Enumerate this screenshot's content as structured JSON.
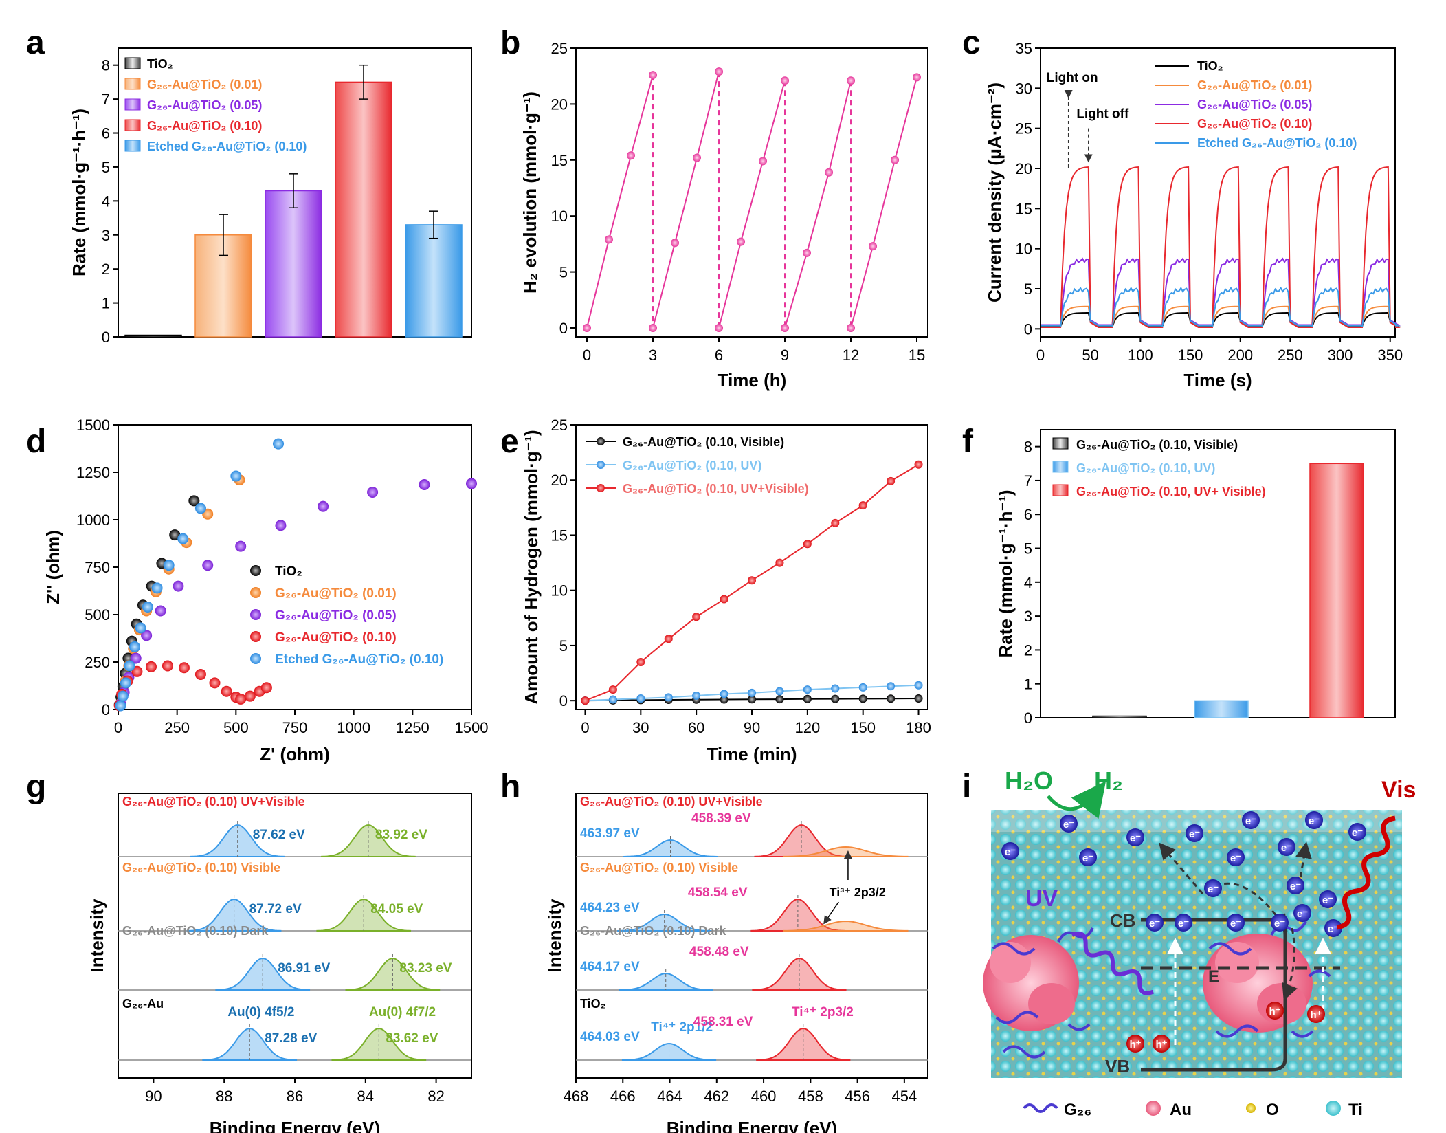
{
  "panels": [
    {
      "letter": "a"
    },
    {
      "letter": "b"
    },
    {
      "letter": "c"
    },
    {
      "letter": "d"
    },
    {
      "letter": "e"
    },
    {
      "letter": "f"
    },
    {
      "letter": "g"
    },
    {
      "letter": "h"
    },
    {
      "letter": "i"
    }
  ],
  "colors": {
    "black": "#000000",
    "orange": "#f58a3c",
    "purple": "#8b2be2",
    "red": "#e8282e",
    "blue": "#3a9ae8",
    "pink": "#e6359a",
    "green": "#7ab02a",
    "gray": "#8a8a8a",
    "lightblue": "#7fc4f2",
    "lightred": "#f06a6a"
  },
  "chart_data": [
    {
      "panel": "a",
      "type": "bar",
      "categories": [
        "TiO2",
        "G26-Au@TiO2 (0.01)",
        "G26-Au@TiO2 (0.05)",
        "G26-Au@TiO2 (0.10)",
        "Etched G26-Au@TiO2 (0.10)"
      ],
      "values": [
        0.05,
        3.0,
        4.3,
        7.5,
        3.3
      ],
      "errors": [
        0.0,
        0.6,
        0.5,
        0.5,
        0.4
      ],
      "ylabel": "Rate (mmol·g⁻¹·h⁻¹)",
      "ylim": [
        0,
        8.5
      ],
      "yticks": [
        "0",
        "1",
        "2",
        "3",
        "4",
        "5",
        "6",
        "7",
        "8"
      ],
      "legend": [
        "TiO₂",
        "G₂₆-Au@TiO₂ (0.01)",
        "G₂₆-Au@TiO₂ (0.05)",
        "G₂₆-Au@TiO₂ (0.10)",
        "Etched G₂₆-Au@TiO₂ (0.10)"
      ],
      "legend_position": "top-left"
    },
    {
      "panel": "b",
      "type": "line",
      "series": [
        {
          "x": [
            0,
            1,
            2,
            3
          ],
          "y": [
            0,
            7.9,
            15.4,
            22.6
          ]
        },
        {
          "x": [
            3,
            4,
            5,
            6
          ],
          "y": [
            0,
            7.6,
            15.2,
            22.9
          ]
        },
        {
          "x": [
            6,
            7,
            8,
            9
          ],
          "y": [
            0,
            7.7,
            14.9,
            22.1
          ]
        },
        {
          "x": [
            9,
            10,
            11,
            12
          ],
          "y": [
            0,
            6.7,
            13.9,
            22.1
          ]
        },
        {
          "x": [
            12,
            13,
            14,
            15
          ],
          "y": [
            0,
            7.3,
            15.0,
            22.4
          ]
        }
      ],
      "xlabel": "Time (h)",
      "ylabel": "H₂ evolution (mmol·g⁻¹)",
      "xlim": [
        -0.5,
        15.5
      ],
      "ylim": [
        -0.8,
        25
      ],
      "xticks": [
        "0",
        "3",
        "6",
        "9",
        "12",
        "15"
      ],
      "yticks": [
        "0",
        "5",
        "10",
        "15",
        "20",
        "25"
      ]
    },
    {
      "panel": "c",
      "type": "line",
      "series": [
        {
          "name": "TiO₂",
          "off": 0.3,
          "on": 2.0
        },
        {
          "name": "G₂₆-Au@TiO₂ (0.01)",
          "off": 0.4,
          "on": 2.8
        },
        {
          "name": "G₂₆-Au@TiO₂ (0.05)",
          "off": 0.5,
          "on": 8.6
        },
        {
          "name": "G₂₆-Au@TiO₂ (0.10)",
          "off": 0.2,
          "on": 20.2
        },
        {
          "name": "Etched G₂₆-Au@TiO₂ (0.10)",
          "off": 0.4,
          "on": 4.9
        }
      ],
      "light_cycles": [
        [
          20,
          48
        ],
        [
          72,
          98
        ],
        [
          122,
          148
        ],
        [
          172,
          198
        ],
        [
          222,
          248
        ],
        [
          272,
          298
        ],
        [
          322,
          348
        ]
      ],
      "xlabel": "Time (s)",
      "ylabel": "Current density (μA·cm⁻²)",
      "xlim": [
        0,
        355
      ],
      "ylim": [
        -1,
        35
      ],
      "xticks": [
        "0",
        "50",
        "100",
        "150",
        "200",
        "250",
        "300",
        "350"
      ],
      "yticks": [
        "0",
        "5",
        "10",
        "15",
        "20",
        "25",
        "30",
        "35"
      ],
      "annotations": [
        "Light on",
        "Light off"
      ],
      "legend_position": "top-right"
    },
    {
      "panel": "d",
      "type": "scatter",
      "series": [
        {
          "name": "TiO₂",
          "x": [
            5,
            12,
            20,
            30,
            42,
            58,
            78,
            105,
            142,
            185,
            240,
            322
          ],
          "y": [
            25,
            65,
            120,
            190,
            270,
            360,
            450,
            550,
            650,
            770,
            920,
            1100
          ]
        },
        {
          "name": "G₂₆-Au@TiO₂ (0.01)",
          "x": [
            8,
            18,
            30,
            45,
            65,
            90,
            120,
            160,
            215,
            290,
            380,
            515
          ],
          "y": [
            30,
            80,
            150,
            230,
            320,
            420,
            520,
            620,
            740,
            880,
            1030,
            1210
          ]
        },
        {
          "name": "G₂₆-Au@TiO₂ (0.05)",
          "x": [
            10,
            25,
            45,
            75,
            120,
            180,
            255,
            380,
            520,
            690,
            870,
            1080,
            1300,
            1500
          ],
          "y": [
            30,
            90,
            170,
            270,
            390,
            520,
            650,
            760,
            860,
            970,
            1070,
            1145,
            1185,
            1190
          ]
        },
        {
          "name": "G₂₆-Au@TiO₂ (0.10)",
          "x": [
            5,
            15,
            40,
            80,
            140,
            210,
            280,
            350,
            410,
            460,
            500,
            520,
            560,
            600,
            630
          ],
          "y": [
            20,
            80,
            150,
            200,
            225,
            230,
            220,
            185,
            140,
            95,
            65,
            55,
            70,
            95,
            115
          ]
        },
        {
          "name": "Etched G₂₆-Au@TiO₂ (0.10)",
          "x": [
            10,
            20,
            32,
            48,
            70,
            95,
            125,
            165,
            215,
            275,
            350,
            500,
            680
          ],
          "y": [
            20,
            70,
            140,
            230,
            330,
            430,
            540,
            640,
            760,
            900,
            1060,
            1230,
            1400
          ]
        }
      ],
      "xlabel": "Z' (ohm)",
      "ylabel": "Z'' (ohm)",
      "xlim": [
        0,
        1500
      ],
      "ylim": [
        0,
        1500
      ],
      "xticks": [
        "0",
        "250",
        "500",
        "750",
        "1000",
        "1250",
        "1500"
      ],
      "yticks": [
        "0",
        "250",
        "500",
        "750",
        "1000",
        "1250",
        "1500"
      ],
      "legend_position": "center-right"
    },
    {
      "panel": "e",
      "type": "line",
      "x": [
        0,
        15,
        30,
        45,
        60,
        75,
        90,
        105,
        120,
        135,
        150,
        165,
        180
      ],
      "series": [
        {
          "name": "G₂₆-Au@TiO₂ (0.10, Visible)",
          "values": [
            0,
            0.02,
            0.05,
            0.07,
            0.09,
            0.1,
            0.12,
            0.13,
            0.15,
            0.16,
            0.17,
            0.18,
            0.2
          ]
        },
        {
          "name": "G₂₆-Au@TiO₂ (0.10, UV)",
          "values": [
            0,
            0.1,
            0.2,
            0.3,
            0.45,
            0.6,
            0.7,
            0.85,
            1.0,
            1.1,
            1.2,
            1.3,
            1.4
          ]
        },
        {
          "name": "G₂₆-Au@TiO₂ (0.10, UV+Visible)",
          "values": [
            0,
            1.0,
            3.5,
            5.6,
            7.6,
            9.2,
            10.9,
            12.5,
            14.2,
            16.1,
            17.7,
            19.9,
            21.4
          ]
        }
      ],
      "xlabel": "Time (min)",
      "ylabel": "Amount of Hydrogen (mmol·g⁻¹)",
      "xlim": [
        -5,
        185
      ],
      "ylim": [
        -0.8,
        25
      ],
      "xticks": [
        "0",
        "30",
        "60",
        "90",
        "120",
        "150",
        "180"
      ],
      "yticks": [
        "0",
        "5",
        "10",
        "15",
        "20",
        "25"
      ],
      "legend_position": "top-left"
    },
    {
      "panel": "f",
      "type": "bar",
      "categories": [
        "G₂₆-Au@TiO₂ (0.10, Visible)",
        "G₂₆-Au@TiO₂ (0.10, UV)",
        "G₂₆-Au@TiO₂ (0.10, UV+ Visible)"
      ],
      "values": [
        0.05,
        0.5,
        7.5
      ],
      "ylabel": "Rate (mmol·g⁻¹·h⁻¹)",
      "ylim": [
        0,
        8.5
      ],
      "yticks": [
        "0",
        "1",
        "2",
        "3",
        "4",
        "5",
        "6",
        "7",
        "8"
      ],
      "legend_position": "top-left"
    },
    {
      "panel": "g",
      "type": "line",
      "xlabel": "Binding Energy (eV)",
      "ylabel": "Intensity",
      "xlim": [
        91,
        81
      ],
      "xticks": [
        "90",
        "88",
        "86",
        "84",
        "82"
      ],
      "spectra": [
        {
          "label": "G₂₆-Au@TiO₂ (0.10) UV+Visible",
          "peaks": [
            {
              "center": 87.62,
              "text": "87.62 eV"
            },
            {
              "center": 83.92,
              "text": "83.92 eV"
            }
          ]
        },
        {
          "label": "G₂₆-Au@TiO₂ (0.10) Visible",
          "peaks": [
            {
              "center": 87.72,
              "text": "87.72 eV"
            },
            {
              "center": 84.05,
              "text": "84.05 eV"
            }
          ]
        },
        {
          "label": "G₂₆-Au@TiO₂ (0.10) Dark",
          "peaks": [
            {
              "center": 86.91,
              "text": "86.91 eV"
            },
            {
              "center": 83.23,
              "text": "83.23 eV"
            }
          ]
        },
        {
          "label": "G₂₆-Au",
          "peaks": [
            {
              "center": 87.28,
              "text": "87.28 eV",
              "name": "Au(0) 4f5/2"
            },
            {
              "center": 83.62,
              "text": "83.62 eV",
              "name": "Au(0) 4f7/2"
            }
          ]
        }
      ]
    },
    {
      "panel": "h",
      "type": "line",
      "xlabel": "Binding Energy (eV)",
      "ylabel": "Intensity",
      "xlim": [
        468,
        453
      ],
      "xticks": [
        "468",
        "466",
        "464",
        "462",
        "460",
        "458",
        "456",
        "454"
      ],
      "spectra": [
        {
          "label": "G₂₆-Au@TiO₂ (0.10) UV+Visible",
          "peaks": [
            {
              "center": 463.97,
              "text": "463.97 eV"
            },
            {
              "center": 458.39,
              "text": "458.39 eV"
            }
          ]
        },
        {
          "label": "G₂₆-Au@TiO₂ (0.10) Visible",
          "peaks": [
            {
              "center": 464.23,
              "text": "464.23 eV"
            },
            {
              "center": 458.54,
              "text": "458.54 eV"
            }
          ]
        },
        {
          "label": "G₂₆-Au@TiO₂ (0.10) Dark",
          "peaks": [
            {
              "center": 464.17,
              "text": "464.17 eV"
            },
            {
              "center": 458.48,
              "text": "458.48 eV"
            }
          ]
        },
        {
          "label": "TiO₂",
          "peaks": [
            {
              "center": 464.03,
              "text": "464.03 eV",
              "name": "Ti⁴⁺ 2p1/2"
            },
            {
              "center": 458.31,
              "text": "458.31 eV",
              "name": "Ti⁴⁺ 2p3/2"
            }
          ]
        }
      ],
      "annotations": [
        "Ti³⁺ 2p3/2"
      ]
    }
  ],
  "schematic": {
    "top_left": "H₂O",
    "top_right": "H₂",
    "vis": "Vis",
    "uv": "UV",
    "cb": "CB",
    "vb": "VB",
    "ef": "E",
    "electron": "e⁻",
    "hole": "h⁺",
    "legend": [
      "G₂₆",
      "Au",
      "O",
      "Ti"
    ]
  }
}
